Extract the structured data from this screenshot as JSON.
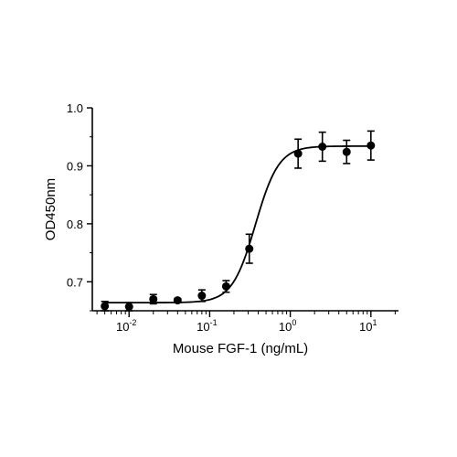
{
  "chart_data": {
    "type": "scatter",
    "xlabel": "Mouse FGF-1 (ng/mL)",
    "ylabel": "OD450nm",
    "xscale": "log",
    "xlim": [
      0.0035,
      22
    ],
    "ylim": [
      0.65,
      1.0
    ],
    "yticks": [
      "0.7",
      "0.8",
      "0.9",
      "1.0"
    ],
    "xticks": [
      {
        "value": 0.01,
        "base": "10",
        "exp": "-2"
      },
      {
        "value": 0.1,
        "base": "10",
        "exp": "-1"
      },
      {
        "value": 1,
        "base": "10",
        "exp": "0"
      },
      {
        "value": 10,
        "base": "10",
        "exp": "1"
      }
    ],
    "grid": false,
    "legend": "none",
    "color": "#000000",
    "series": [
      {
        "x": [
          0.005,
          0.01,
          0.02,
          0.04,
          0.08,
          0.16,
          0.31,
          1.25,
          2.5,
          5,
          10
        ],
        "y": [
          0.658,
          0.657,
          0.67,
          0.668,
          0.676,
          0.692,
          0.757,
          0.921,
          0.933,
          0.924,
          0.935
        ],
        "err": [
          0.008,
          0.007,
          0.008,
          0.003,
          0.01,
          0.01,
          0.025,
          0.025,
          0.025,
          0.02,
          0.025
        ]
      }
    ],
    "fit": {
      "type": "4PL",
      "bottom": 0.664,
      "top": 0.934,
      "ec50": 0.37,
      "hill": 3.0
    }
  }
}
